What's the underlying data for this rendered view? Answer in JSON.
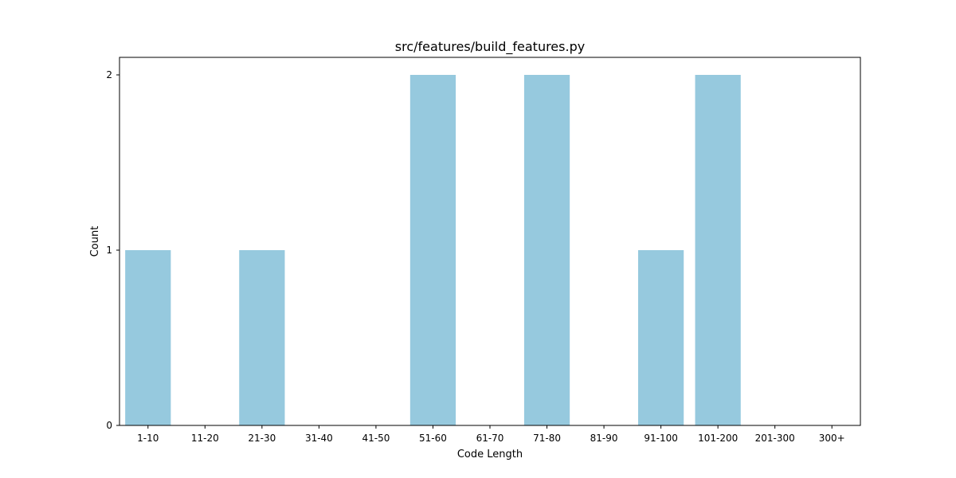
{
  "chart_data": {
    "type": "bar",
    "title": "src/features/build_features.py",
    "xlabel": "Code Length",
    "ylabel": "Count",
    "categories": [
      "1-10",
      "11-20",
      "21-30",
      "31-40",
      "41-50",
      "51-60",
      "61-70",
      "71-80",
      "81-90",
      "91-100",
      "101-200",
      "201-300",
      "300+"
    ],
    "values": [
      1,
      0,
      1,
      0,
      0,
      2,
      0,
      2,
      0,
      1,
      2,
      0,
      0
    ],
    "yticks": [
      0,
      1,
      2
    ],
    "ylim": [
      0,
      2.1
    ],
    "grid": false,
    "bar_color": "#96c9de"
  }
}
